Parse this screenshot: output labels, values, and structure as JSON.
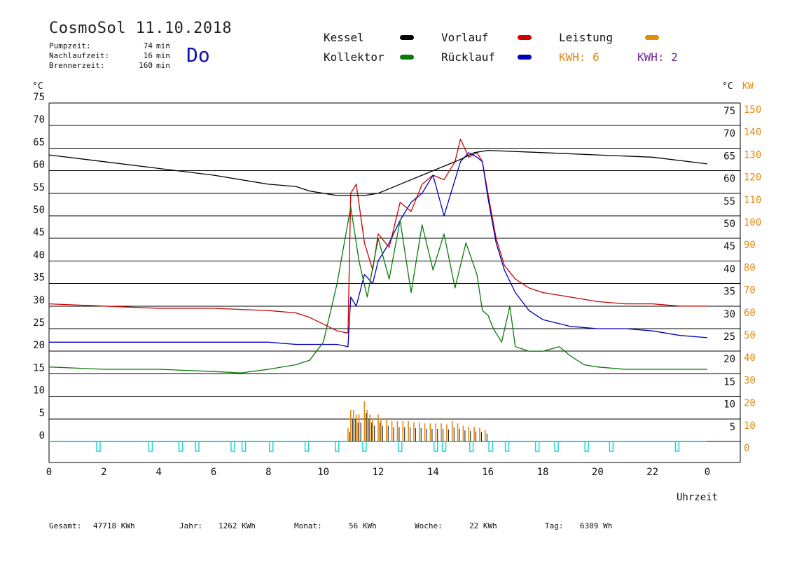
{
  "header": {
    "title": "CosmoSol 11.10.2018",
    "weekday": "Do",
    "stats": [
      {
        "label": "Pumpzeit:",
        "value": "74",
        "unit": "min"
      },
      {
        "label": "Nachlaufzeit:",
        "value": "16",
        "unit": "min"
      },
      {
        "label": "Brennerzeit:",
        "value": "160",
        "unit": "min"
      }
    ]
  },
  "legend": {
    "kessel": "Kessel",
    "kollektor": "Kollektor",
    "vorlauf": "Vorlauf",
    "ruecklauf": "Rücklauf",
    "leistung": "Leistung",
    "kwh1": "KWH: 6",
    "kwh2": "KWH: 2"
  },
  "axes": {
    "left_unit": "°C",
    "right_unit": "°C",
    "right_unit2": "KW",
    "xlabel": "Uhrzeit"
  },
  "footer": {
    "gesamt_label": "Gesamt:",
    "gesamt_value": "47718 KWh",
    "jahr_label": "Jahr:",
    "jahr_value": "1262 KWh",
    "monat_label": "Monat:",
    "monat_value": "56 KWh",
    "woche_label": "Woche:",
    "woche_value": "22 KWh",
    "tag_label": "Tag:",
    "tag_value": "6309 Wh"
  },
  "chart_data": {
    "type": "line",
    "title": "CosmoSol 11.10.2018",
    "xlabel": "Uhrzeit",
    "ylabel": "°C",
    "y2label": "KW",
    "xlim": [
      0,
      24
    ],
    "ylim": [
      0,
      75
    ],
    "y2lim": [
      0,
      150
    ],
    "grid": true,
    "x_ticks": [
      "0",
      "2",
      "4",
      "6",
      "8",
      "10",
      "12",
      "14",
      "16",
      "18",
      "20",
      "22",
      "0"
    ],
    "y_ticks": [
      0,
      5,
      10,
      15,
      20,
      25,
      30,
      35,
      40,
      45,
      50,
      55,
      60,
      65,
      70,
      75
    ],
    "y2_ticks": [
      0,
      10,
      20,
      30,
      40,
      50,
      60,
      70,
      80,
      90,
      100,
      110,
      120,
      130,
      140,
      150
    ],
    "colors": {
      "kessel": "#000000",
      "kollektor": "#0a7a0a",
      "vorlauf": "#cc0000",
      "ruecklauf": "#0000bb",
      "leistung": "#e08a10",
      "kwh2": "#7a2a9a",
      "pump": "#22d4d4",
      "kwh_text": "#e08a10"
    },
    "series": [
      {
        "name": "Kessel",
        "color": "#000000",
        "x": [
          0,
          2,
          4,
          6,
          8,
          9,
          9.5,
          10,
          10.5,
          11,
          11.5,
          12,
          13,
          14,
          15,
          15.5,
          16,
          18,
          20,
          22,
          24
        ],
        "y": [
          63.5,
          62,
          60.5,
          59,
          57,
          56.5,
          55.5,
          55,
          54.5,
          54.5,
          54.5,
          55,
          57.5,
          60,
          62.5,
          64,
          64.5,
          64,
          63.5,
          63,
          61.5
        ]
      },
      {
        "name": "Kollektor",
        "color": "#0a7a0a",
        "x": [
          0,
          2,
          4,
          6,
          7,
          8,
          9,
          9.5,
          10,
          10.5,
          11,
          11.3,
          11.6,
          12,
          12.4,
          12.8,
          13.2,
          13.6,
          14,
          14.4,
          14.8,
          15.2,
          15.6,
          15.8,
          16,
          16.2,
          16.5,
          16.8,
          17,
          17.5,
          18,
          18.3,
          18.6,
          19,
          19.5,
          20,
          21,
          22,
          23,
          24
        ],
        "y": [
          16.5,
          16,
          16,
          15.5,
          15.2,
          16,
          17,
          18,
          22,
          35,
          52,
          40,
          32,
          45,
          36,
          49,
          33,
          48,
          38,
          46,
          34,
          44,
          37,
          29,
          28,
          25,
          22,
          30,
          21,
          20,
          20,
          20.5,
          21,
          19,
          17,
          16.5,
          16,
          16,
          16,
          16
        ]
      },
      {
        "name": "Vorlauf",
        "color": "#cc0000",
        "x": [
          0,
          2,
          4,
          6,
          8,
          9,
          9.5,
          10,
          10.5,
          10.9,
          11,
          11.2,
          11.5,
          11.8,
          12,
          12.4,
          12.8,
          13.2,
          13.6,
          14,
          14.4,
          14.8,
          15.0,
          15.3,
          15.6,
          15.8,
          16,
          16.3,
          16.6,
          17,
          17.5,
          18,
          19,
          20,
          21,
          22,
          23,
          24
        ],
        "y": [
          30.5,
          30,
          29.5,
          29.5,
          29,
          28.5,
          27.5,
          26,
          24.5,
          24,
          55,
          57,
          44,
          38,
          46,
          43,
          53,
          51,
          57,
          59,
          58,
          62,
          67,
          63,
          64,
          62,
          55,
          45,
          39,
          36,
          34,
          33,
          32,
          31,
          30.5,
          30.5,
          30,
          30
        ]
      },
      {
        "name": "Rücklauf",
        "color": "#0000bb",
        "x": [
          0,
          2,
          4,
          6,
          8,
          9,
          9.5,
          10,
          10.5,
          10.9,
          11,
          11.2,
          11.5,
          11.8,
          12,
          12.4,
          12.8,
          13.2,
          13.6,
          14,
          14.4,
          14.8,
          15.0,
          15.3,
          15.6,
          15.8,
          16,
          16.3,
          16.6,
          17,
          17.5,
          18,
          19,
          20,
          21,
          22,
          23,
          24
        ],
        "y": [
          22,
          22,
          22,
          22,
          22,
          21.5,
          21.5,
          21.5,
          21.5,
          21,
          32,
          30,
          37,
          35,
          40,
          44,
          49,
          53,
          55,
          59,
          50,
          58,
          62,
          64,
          63,
          62,
          54,
          44,
          38,
          33,
          29,
          27,
          25.5,
          25,
          25,
          24.5,
          23.5,
          23
        ]
      }
    ],
    "leistung": {
      "name": "Leistung",
      "color": "#e08a10",
      "x": [
        10.9,
        11.0,
        11.1,
        11.2,
        11.3,
        11.5,
        11.6,
        11.7,
        11.8,
        12.0,
        12.1,
        12.3,
        12.5,
        12.7,
        12.9,
        13.1,
        13.3,
        13.5,
        13.7,
        13.9,
        14.1,
        14.3,
        14.5,
        14.7,
        14.9,
        15.1,
        15.3,
        15.5,
        15.7,
        15.9
      ],
      "y": [
        3,
        7,
        7,
        6,
        6,
        9,
        7,
        6,
        5,
        6,
        5,
        5,
        4.5,
        4.5,
        4.5,
        4.5,
        4.2,
        4.2,
        4,
        4,
        4,
        4,
        3.8,
        4.5,
        4,
        3.5,
        3.3,
        3.2,
        3,
        2.5
      ]
    },
    "pump_cycles": [
      1.8,
      3.7,
      4.8,
      5.4,
      6.7,
      7.1,
      8.1,
      9.4,
      10.5,
      11.5,
      12.8,
      14.1,
      14.4,
      15.4,
      16.1,
      16.7,
      17.8,
      18.5,
      19.6,
      20.5,
      22.9
    ]
  }
}
